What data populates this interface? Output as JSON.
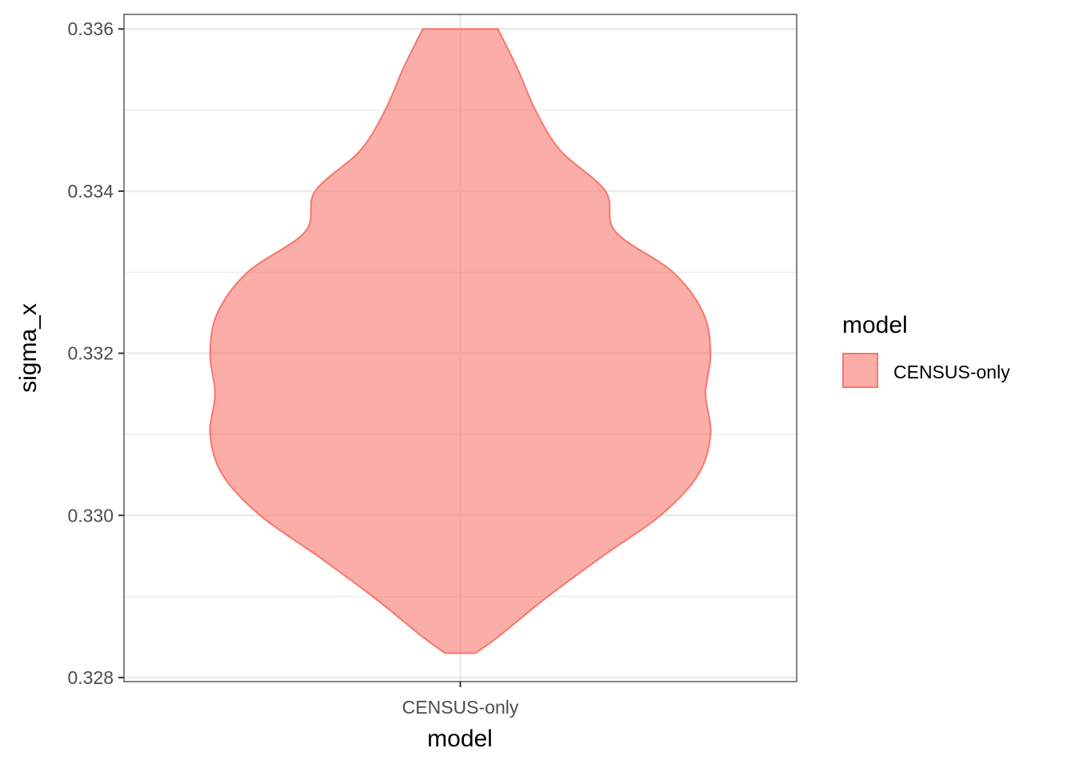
{
  "chart_data": {
    "type": "violin",
    "title": "",
    "xlabel": "model",
    "ylabel": "sigma_x",
    "categories": [
      "CENSUS-only"
    ],
    "ylim": [
      0.32795,
      0.33618
    ],
    "y_ticks": [
      0.328,
      0.33,
      0.332,
      0.334,
      0.336
    ],
    "y_tick_labels": [
      "0.328",
      "0.330",
      "0.332",
      "0.334",
      "0.336"
    ],
    "grid": true,
    "legend": {
      "title": "model",
      "position": "right",
      "entries": [
        "CENSUS-only"
      ]
    },
    "series": [
      {
        "name": "CENSUS-only",
        "fill": "#F8766D",
        "fill_opacity": 0.6,
        "stroke": "#F8766D",
        "y_min": 0.3283,
        "y_max": 0.336,
        "density": [
          [
            0.3283,
            0.06
          ],
          [
            0.3285,
            0.15
          ],
          [
            0.329,
            0.35
          ],
          [
            0.3295,
            0.57
          ],
          [
            0.33,
            0.8
          ],
          [
            0.3305,
            0.95
          ],
          [
            0.331,
            1.0
          ],
          [
            0.3315,
            0.98
          ],
          [
            0.332,
            1.0
          ],
          [
            0.3325,
            0.97
          ],
          [
            0.333,
            0.85
          ],
          [
            0.3335,
            0.62
          ],
          [
            0.334,
            0.58
          ],
          [
            0.3345,
            0.4
          ],
          [
            0.335,
            0.3
          ],
          [
            0.3355,
            0.23
          ],
          [
            0.336,
            0.15
          ]
        ]
      }
    ]
  }
}
